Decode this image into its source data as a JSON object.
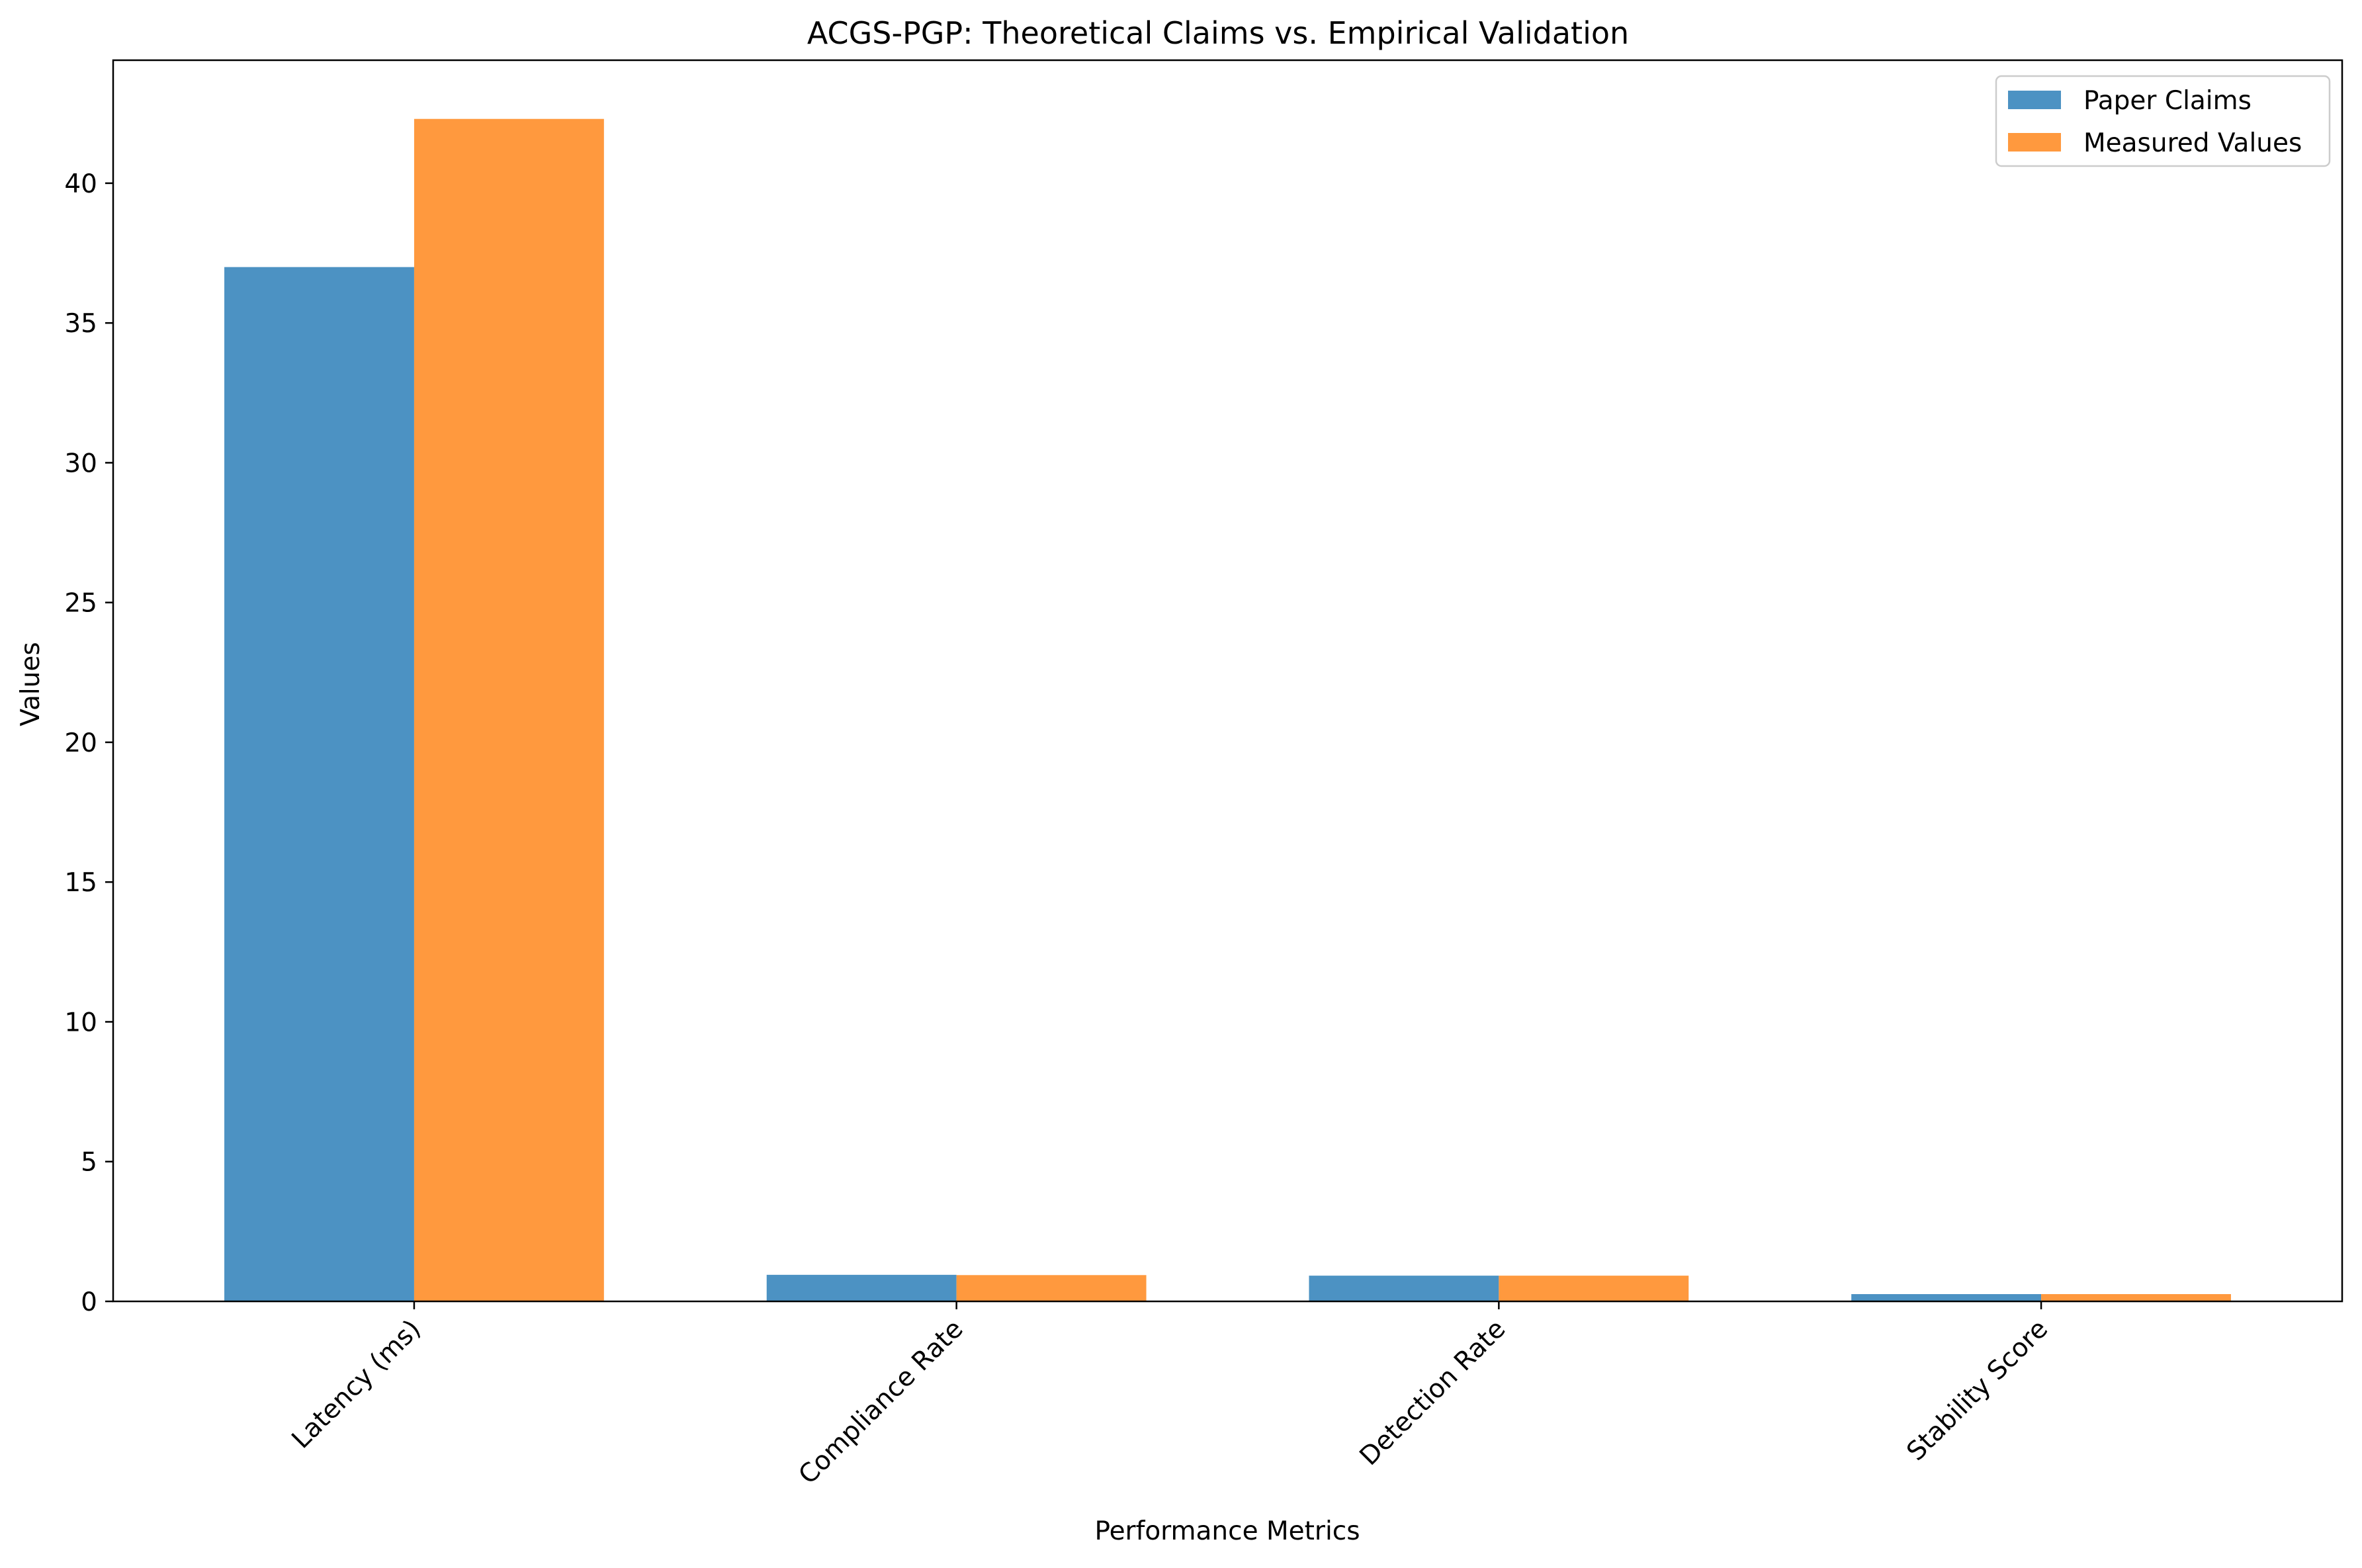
{
  "chart_data": {
    "type": "bar",
    "title": "ACGS-PGP: Theoretical Claims vs. Empirical Validation",
    "xlabel": "Performance Metrics",
    "ylabel": "Values",
    "categories": [
      "Latency (ms)",
      "Compliance Rate",
      "Detection Rate",
      "Stability Score"
    ],
    "series": [
      {
        "name": "Paper Claims",
        "values": [
          37.0,
          0.95,
          0.92,
          0.26
        ],
        "color": "#4c92c3"
      },
      {
        "name": "Measured Values",
        "values": [
          42.3,
          0.94,
          0.92,
          0.26
        ],
        "color": "#ff993e"
      }
    ],
    "ylim": [
      0,
      44.4
    ],
    "yticks": [
      "0",
      "5",
      "10",
      "15",
      "20",
      "25",
      "30",
      "35",
      "40"
    ],
    "legend_position": "top-right",
    "grid": false
  }
}
